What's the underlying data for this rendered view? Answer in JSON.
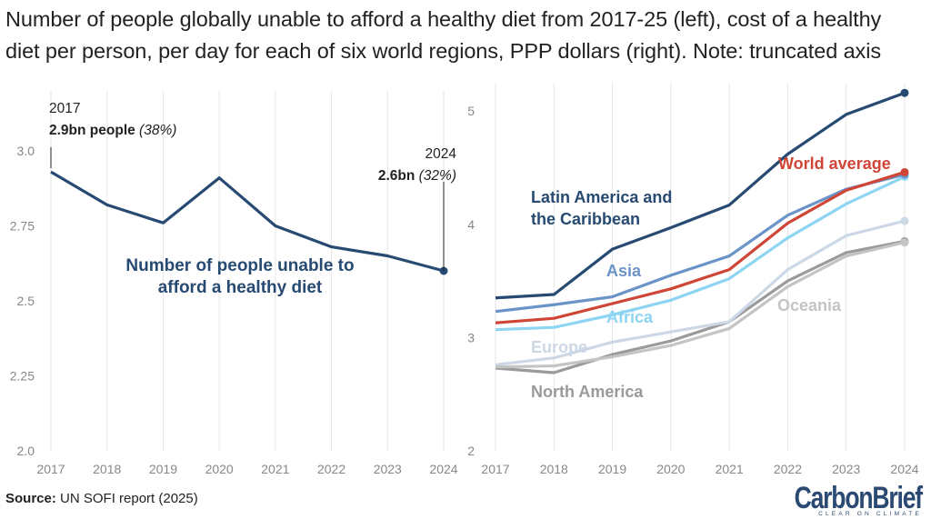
{
  "title": {
    "line1": "Number of people globally unable to afford a healthy diet from 2017-25 (left), cost of a healthy",
    "line2": "diet per person, per day for each of six world regions, PPP dollars (right). Note: truncated axis"
  },
  "source": {
    "label": "Source:",
    "text": " UN SOFI report (2025)"
  },
  "logo": {
    "text": "CarbonBrief",
    "tagline": "CLEAR ON CLIMATE",
    "color": "#2b4a73"
  },
  "chart_data": [
    {
      "type": "line",
      "x": [
        2017,
        2018,
        2019,
        2020,
        2021,
        2022,
        2023,
        2024
      ],
      "x_tick_labels": [
        "2017",
        "2018",
        "2019",
        "2020",
        "2021",
        "2022",
        "2023",
        "2024"
      ],
      "y_ticks": [
        2.0,
        2.25,
        2.5,
        2.75,
        3.0
      ],
      "y_tick_labels": [
        "2.0",
        "2.25",
        "2.5",
        "2.75",
        "3.0"
      ],
      "ylim": [
        2.0,
        3.2
      ],
      "series": [
        {
          "name": "Number of people unable to afford a healthy diet",
          "label_line1": "Number of people unable to",
          "label_line2": "afford a healthy diet",
          "color": "#274a72",
          "values": [
            2.93,
            2.82,
            2.76,
            2.91,
            2.75,
            2.68,
            2.65,
            2.6
          ]
        }
      ],
      "annotations": [
        {
          "year": "2017",
          "bold": "2.9bn people",
          "italic": " (38%)"
        },
        {
          "year": "2024",
          "bold": "2.6bn",
          "italic": " (32%)"
        }
      ]
    },
    {
      "type": "line",
      "x": [
        2017,
        2018,
        2019,
        2020,
        2021,
        2022,
        2023,
        2024
      ],
      "x_tick_labels": [
        "2017",
        "2018",
        "2019",
        "2020",
        "2021",
        "2022",
        "2023",
        "2024"
      ],
      "y_ticks": [
        2,
        3,
        4,
        5
      ],
      "y_tick_labels": [
        "2",
        "3",
        "4",
        "5"
      ],
      "ylim": [
        2,
        5.25
      ],
      "series": [
        {
          "name": "North America",
          "color": "#9a9a9a",
          "values": [
            2.73,
            2.69,
            2.85,
            2.97,
            3.14,
            3.5,
            3.75,
            3.85
          ]
        },
        {
          "name": "Europe",
          "color": "#ccd8e5",
          "values": [
            2.76,
            2.82,
            2.96,
            3.05,
            3.14,
            3.6,
            3.9,
            4.03
          ]
        },
        {
          "name": "Oceania",
          "color": "#c4c4c4",
          "values": [
            2.74,
            2.75,
            2.83,
            2.93,
            3.08,
            3.45,
            3.72,
            3.84
          ]
        },
        {
          "name": "Africa",
          "color": "#8dd5f2",
          "values": [
            3.07,
            3.09,
            3.2,
            3.33,
            3.52,
            3.88,
            4.18,
            4.42
          ]
        },
        {
          "name": "Asia",
          "color": "#6a93c8",
          "values": [
            3.23,
            3.29,
            3.36,
            3.55,
            3.72,
            4.08,
            4.31,
            4.44
          ]
        },
        {
          "name": "World average",
          "color": "#cf4536",
          "values": [
            3.13,
            3.17,
            3.3,
            3.43,
            3.6,
            4.01,
            4.3,
            4.46
          ]
        },
        {
          "name": "Latin America and the Caribbean",
          "label_line1": "Latin America and",
          "label_line2": "the Caribbean",
          "color": "#274a72",
          "values": [
            3.35,
            3.38,
            3.78,
            3.97,
            4.17,
            4.62,
            4.97,
            5.16
          ]
        }
      ]
    }
  ]
}
